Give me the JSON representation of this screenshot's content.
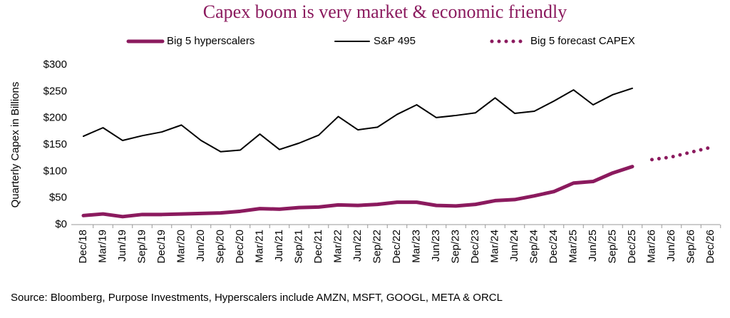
{
  "chart_data": {
    "type": "line",
    "title": "Capex boom is very market & economic friendly",
    "y_label": "Quarterly Capex in Billions",
    "note": "Source: Bloomberg, Purpose Investments, Hyperscalers include AMZN, MSFT, GOOGL, META & ORCL",
    "categories": [
      "Dec/18",
      "Mar/19",
      "Jun/19",
      "Sep/19",
      "Dec/19",
      "Mar/20",
      "Jun/20",
      "Sep/20",
      "Dec/20",
      "Mar/21",
      "Jun/21",
      "Sep/21",
      "Dec/21",
      "Mar/22",
      "Jun/22",
      "Sep/22",
      "Dec/22",
      "Mar/23",
      "Jun/23",
      "Sep/23",
      "Dec/23",
      "Mar/24",
      "Jun/24",
      "Sep/24",
      "Dec/24",
      "Mar/25",
      "Jun/25",
      "Sep/25",
      "Dec/25",
      "Mar/26",
      "Jun/26",
      "Sep/26",
      "Dec/26"
    ],
    "series": [
      {
        "name": "Big 5 hyperscalers",
        "color": "#8b1a5e",
        "style": "thick",
        "values": [
          17,
          20,
          15,
          19,
          19,
          20,
          21,
          22,
          25,
          30,
          29,
          32,
          33,
          37,
          36,
          38,
          42,
          42,
          36,
          35,
          38,
          45,
          47,
          54,
          62,
          78,
          81,
          97,
          109,
          null,
          null,
          null,
          null
        ]
      },
      {
        "name": "S&P 495",
        "color": "#000000",
        "style": "thin",
        "values": [
          166,
          182,
          158,
          167,
          174,
          187,
          158,
          137,
          140,
          170,
          141,
          153,
          168,
          203,
          178,
          183,
          207,
          225,
          201,
          205,
          210,
          238,
          209,
          213,
          232,
          253,
          225,
          244,
          256,
          null,
          null,
          null,
          null
        ]
      },
      {
        "name": "Big 5 forecast CAPEX",
        "color": "#8b1a5e",
        "style": "dotted",
        "values": [
          null,
          null,
          null,
          null,
          null,
          null,
          null,
          null,
          null,
          null,
          null,
          null,
          null,
          null,
          null,
          null,
          null,
          null,
          null,
          null,
          null,
          null,
          null,
          null,
          null,
          null,
          null,
          null,
          null,
          122,
          127,
          136,
          145
        ]
      }
    ],
    "ylim": [
      0,
      300
    ],
    "yticks": [
      {
        "value": 0,
        "label": "$0"
      },
      {
        "value": 50,
        "label": "$50"
      },
      {
        "value": 100,
        "label": "$100"
      },
      {
        "value": 150,
        "label": "$150"
      },
      {
        "value": 200,
        "label": "$200"
      },
      {
        "value": 250,
        "label": "$250"
      },
      {
        "value": 300,
        "label": "$300"
      }
    ],
    "grid": false
  }
}
